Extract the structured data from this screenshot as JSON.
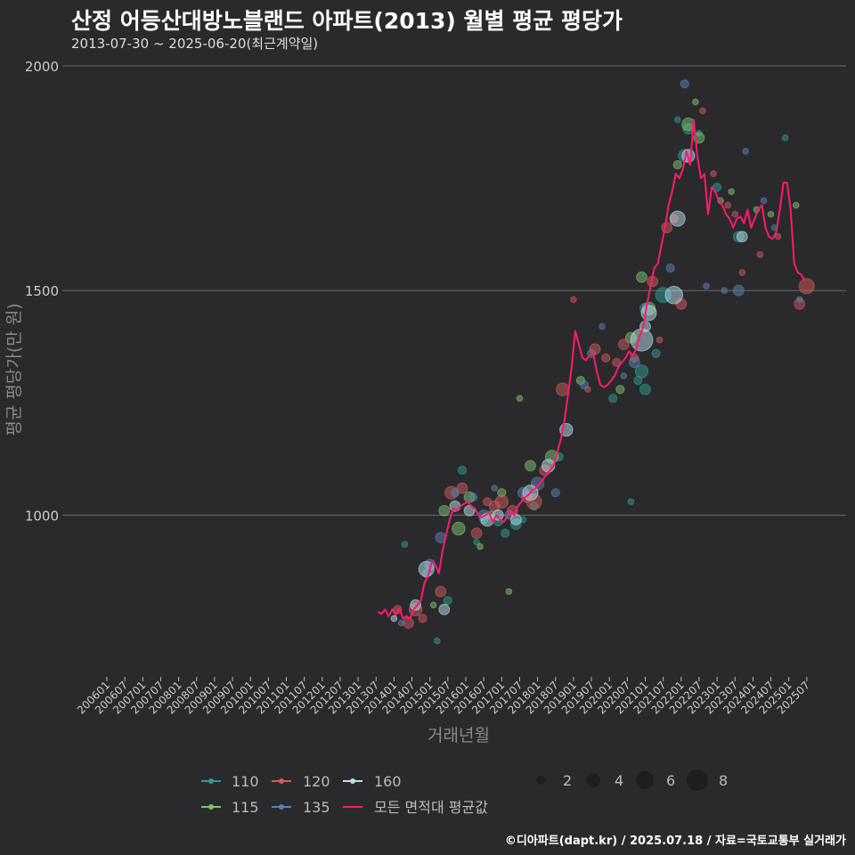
{
  "title": "산정 어등산대방노블랜드 아파트(2013) 월별 평균 평당가",
  "subtitle": "2013-07-30 ~ 2025-06-20(최근계약일)",
  "credit": "©디아파트(dapt.kr) / 2025.07.18 / 자료=국토교통부 실거래가",
  "colors": {
    "background": "#2a2a2c",
    "grid": "#6a6a6a",
    "avg_line": "#ff1a6e",
    "s110": "#2f9b93",
    "s115": "#7fc46a",
    "s120": "#d45a5a",
    "s135": "#5f7fb8",
    "s160": "#b8e0ea"
  },
  "chart_data": {
    "type": "scatter",
    "title": "산정 어등산대방노블랜드 아파트(2013) 월별 평균 평당가",
    "xlabel": "거래년월",
    "ylabel": "평균 평당가(만 원)",
    "ylim": [
      640,
      2000
    ],
    "yticks": [
      1000,
      1500,
      2000
    ],
    "xlim": [
      2006.0,
      2025.9
    ],
    "xticks": [
      "200601",
      "200607",
      "200701",
      "200707",
      "200801",
      "200807",
      "200901",
      "200907",
      "201001",
      "201007",
      "201101",
      "201107",
      "201201",
      "201207",
      "201301",
      "201307",
      "201401",
      "201407",
      "201501",
      "201507",
      "201601",
      "201607",
      "201701",
      "201707",
      "201801",
      "201807",
      "201901",
      "201907",
      "202001",
      "202007",
      "202101",
      "202107",
      "202201",
      "202207",
      "202301",
      "202307",
      "202401",
      "202407",
      "202501",
      "202507"
    ],
    "grid": "horizontal",
    "legend_position": "bottom",
    "legend": {
      "area_series": [
        "110",
        "115",
        "120",
        "135",
        "160"
      ],
      "line_series": "모든 면적대 평균값",
      "size_values": [
        "2",
        "4",
        "6",
        "8"
      ]
    },
    "avg_line": {
      "name": "모든 면적대 평균값",
      "points": [
        [
          2013.55,
          785
        ],
        [
          2013.65,
          780
        ],
        [
          2013.75,
          790
        ],
        [
          2013.85,
          775
        ],
        [
          2013.95,
          790
        ],
        [
          2014.05,
          778
        ],
        [
          2014.15,
          792
        ],
        [
          2014.25,
          770
        ],
        [
          2014.35,
          775
        ],
        [
          2014.45,
          770
        ],
        [
          2014.55,
          790
        ],
        [
          2014.65,
          800
        ],
        [
          2014.75,
          810
        ],
        [
          2014.85,
          850
        ],
        [
          2014.95,
          865
        ],
        [
          2015.05,
          895
        ],
        [
          2015.15,
          890
        ],
        [
          2015.25,
          870
        ],
        [
          2015.35,
          920
        ],
        [
          2015.45,
          955
        ],
        [
          2015.55,
          990
        ],
        [
          2015.65,
          1015
        ],
        [
          2015.75,
          1010
        ],
        [
          2015.85,
          1020
        ],
        [
          2015.95,
          1025
        ],
        [
          2016.05,
          1030
        ],
        [
          2016.15,
          1020
        ],
        [
          2016.25,
          1015
        ],
        [
          2016.35,
          1000
        ],
        [
          2016.45,
          995
        ],
        [
          2016.55,
          1000
        ],
        [
          2016.65,
          1005
        ],
        [
          2016.75,
          985
        ],
        [
          2016.85,
          1000
        ],
        [
          2016.95,
          990
        ],
        [
          2017.05,
          985
        ],
        [
          2017.15,
          995
        ],
        [
          2017.25,
          1010
        ],
        [
          2017.35,
          1000
        ],
        [
          2017.45,
          1020
        ],
        [
          2017.55,
          1030
        ],
        [
          2017.65,
          1040
        ],
        [
          2017.75,
          1045
        ],
        [
          2017.85,
          1055
        ],
        [
          2017.95,
          1060
        ],
        [
          2018.05,
          1070
        ],
        [
          2018.15,
          1080
        ],
        [
          2018.25,
          1090
        ],
        [
          2018.35,
          1100
        ],
        [
          2018.45,
          1110
        ],
        [
          2018.55,
          1140
        ],
        [
          2018.65,
          1170
        ],
        [
          2018.75,
          1210
        ],
        [
          2018.85,
          1270
        ],
        [
          2018.95,
          1330
        ],
        [
          2019.05,
          1410
        ],
        [
          2019.15,
          1380
        ],
        [
          2019.25,
          1350
        ],
        [
          2019.35,
          1345
        ],
        [
          2019.45,
          1355
        ],
        [
          2019.55,
          1360
        ],
        [
          2019.65,
          1320
        ],
        [
          2019.75,
          1290
        ],
        [
          2019.85,
          1285
        ],
        [
          2019.95,
          1290
        ],
        [
          2020.05,
          1300
        ],
        [
          2020.15,
          1310
        ],
        [
          2020.25,
          1330
        ],
        [
          2020.35,
          1340
        ],
        [
          2020.45,
          1350
        ],
        [
          2020.55,
          1365
        ],
        [
          2020.65,
          1355
        ],
        [
          2020.75,
          1370
        ],
        [
          2020.85,
          1400
        ],
        [
          2020.95,
          1420
        ],
        [
          2021.05,
          1470
        ],
        [
          2021.15,
          1510
        ],
        [
          2021.25,
          1550
        ],
        [
          2021.35,
          1560
        ],
        [
          2021.45,
          1600
        ],
        [
          2021.55,
          1640
        ],
        [
          2021.65,
          1690
        ],
        [
          2021.75,
          1720
        ],
        [
          2021.85,
          1760
        ],
        [
          2021.95,
          1750
        ],
        [
          2022.05,
          1770
        ],
        [
          2022.15,
          1810
        ],
        [
          2022.25,
          1780
        ],
        [
          2022.35,
          1880
        ],
        [
          2022.45,
          1800
        ],
        [
          2022.55,
          1750
        ],
        [
          2022.65,
          1760
        ],
        [
          2022.75,
          1670
        ],
        [
          2022.85,
          1730
        ],
        [
          2022.95,
          1720
        ],
        [
          2023.05,
          1700
        ],
        [
          2023.15,
          1690
        ],
        [
          2023.25,
          1670
        ],
        [
          2023.35,
          1660
        ],
        [
          2023.45,
          1640
        ],
        [
          2023.55,
          1660
        ],
        [
          2023.65,
          1665
        ],
        [
          2023.75,
          1650
        ],
        [
          2023.85,
          1680
        ],
        [
          2023.95,
          1640
        ],
        [
          2024.05,
          1660
        ],
        [
          2024.15,
          1680
        ],
        [
          2024.25,
          1690
        ],
        [
          2024.35,
          1640
        ],
        [
          2024.45,
          1620
        ],
        [
          2024.55,
          1615
        ],
        [
          2024.65,
          1630
        ],
        [
          2024.75,
          1680
        ],
        [
          2024.85,
          1740
        ],
        [
          2024.95,
          1740
        ],
        [
          2025.05,
          1680
        ],
        [
          2025.15,
          1560
        ],
        [
          2025.25,
          1540
        ],
        [
          2025.35,
          1535
        ],
        [
          2025.45,
          1520
        ]
      ]
    },
    "series": [
      {
        "name": "110",
        "points": [
          [
            2014.3,
            935,
            1
          ],
          [
            2015.2,
            720,
            1
          ],
          [
            2015.5,
            810,
            2
          ],
          [
            2015.9,
            1100,
            2
          ],
          [
            2016.3,
            940,
            1
          ],
          [
            2016.5,
            990,
            2
          ],
          [
            2016.9,
            985,
            2
          ],
          [
            2017.1,
            960,
            2
          ],
          [
            2017.4,
            980,
            3
          ],
          [
            2017.6,
            990,
            1
          ],
          [
            2017.9,
            1020,
            2
          ],
          [
            2018.6,
            1130,
            2
          ],
          [
            2019.5,
            1360,
            2
          ],
          [
            2020.1,
            1260,
            2
          ],
          [
            2020.6,
            1030,
            1
          ],
          [
            2020.8,
            1300,
            2
          ],
          [
            2020.9,
            1320,
            4
          ],
          [
            2021.0,
            1280,
            3
          ],
          [
            2021.3,
            1360,
            2
          ],
          [
            2021.5,
            1490,
            5
          ],
          [
            2021.9,
            1880,
            1
          ],
          [
            2022.1,
            1800,
            4
          ],
          [
            2022.2,
            1860,
            3
          ],
          [
            2022.5,
            1850,
            1
          ],
          [
            2023.0,
            1730,
            2
          ],
          [
            2023.6,
            1620,
            3
          ],
          [
            2024.6,
            1640,
            1
          ],
          [
            2024.9,
            1840,
            1
          ]
        ]
      },
      {
        "name": "115",
        "points": [
          [
            2015.1,
            800,
            1
          ],
          [
            2015.4,
            1010,
            3
          ],
          [
            2015.8,
            970,
            4
          ],
          [
            2016.1,
            1040,
            3
          ],
          [
            2016.4,
            930,
            1
          ],
          [
            2016.7,
            1000,
            2
          ],
          [
            2017.0,
            1050,
            2
          ],
          [
            2017.2,
            830,
            1
          ],
          [
            2017.5,
            1260,
            1
          ],
          [
            2017.8,
            1110,
            3
          ],
          [
            2018.4,
            1130,
            4
          ],
          [
            2019.2,
            1300,
            2
          ],
          [
            2020.3,
            1280,
            2
          ],
          [
            2020.6,
            1395,
            3
          ],
          [
            2020.9,
            1530,
            3
          ],
          [
            2021.1,
            1460,
            4
          ],
          [
            2021.9,
            1780,
            2
          ],
          [
            2022.2,
            1870,
            4
          ],
          [
            2022.4,
            1920,
            1
          ],
          [
            2022.5,
            1840,
            3
          ],
          [
            2023.1,
            1700,
            1
          ],
          [
            2023.4,
            1720,
            1
          ],
          [
            2024.1,
            1680,
            1
          ],
          [
            2024.5,
            1670,
            1
          ],
          [
            2025.2,
            1690,
            1
          ]
        ]
      },
      {
        "name": "120",
        "points": [
          [
            2014.1,
            790,
            2
          ],
          [
            2014.4,
            760,
            3
          ],
          [
            2014.6,
            790,
            4
          ],
          [
            2014.8,
            770,
            2
          ],
          [
            2015.3,
            830,
            3
          ],
          [
            2015.6,
            1050,
            4
          ],
          [
            2015.9,
            1060,
            3
          ],
          [
            2016.3,
            960,
            3
          ],
          [
            2016.6,
            1030,
            2
          ],
          [
            2016.8,
            1020,
            3
          ],
          [
            2017.0,
            1030,
            4
          ],
          [
            2017.3,
            1010,
            3
          ],
          [
            2017.7,
            1040,
            3
          ],
          [
            2017.9,
            1030,
            5
          ],
          [
            2018.2,
            1100,
            3
          ],
          [
            2018.7,
            1280,
            4
          ],
          [
            2019.0,
            1480,
            1
          ],
          [
            2019.4,
            1280,
            1
          ],
          [
            2019.6,
            1370,
            3
          ],
          [
            2019.9,
            1350,
            2
          ],
          [
            2020.2,
            1340,
            2
          ],
          [
            2020.4,
            1380,
            3
          ],
          [
            2020.7,
            1350,
            2
          ],
          [
            2021.2,
            1520,
            3
          ],
          [
            2021.4,
            1390,
            1
          ],
          [
            2021.6,
            1640,
            3
          ],
          [
            2021.8,
            1660,
            2
          ],
          [
            2022.0,
            1470,
            3
          ],
          [
            2022.6,
            1900,
            1
          ],
          [
            2022.9,
            1760,
            1
          ],
          [
            2023.3,
            1690,
            1
          ],
          [
            2023.5,
            1670,
            1
          ],
          [
            2023.7,
            1540,
            1
          ],
          [
            2024.2,
            1580,
            1
          ],
          [
            2024.7,
            1620,
            1
          ],
          [
            2025.3,
            1470,
            3
          ],
          [
            2025.5,
            1510,
            5
          ]
        ]
      },
      {
        "name": "135",
        "points": [
          [
            2014.2,
            760,
            1
          ],
          [
            2014.9,
            870,
            2
          ],
          [
            2015.0,
            890,
            3
          ],
          [
            2015.3,
            950,
            3
          ],
          [
            2015.7,
            1050,
            2
          ],
          [
            2016.2,
            1040,
            2
          ],
          [
            2016.5,
            1000,
            3
          ],
          [
            2016.8,
            1060,
            1
          ],
          [
            2017.2,
            1000,
            2
          ],
          [
            2017.6,
            1050,
            3
          ],
          [
            2018.0,
            1070,
            4
          ],
          [
            2018.5,
            1050,
            2
          ],
          [
            2019.3,
            1290,
            2
          ],
          [
            2019.8,
            1420,
            1
          ],
          [
            2020.4,
            1310,
            1
          ],
          [
            2020.7,
            1340,
            3
          ],
          [
            2021.0,
            1460,
            3
          ],
          [
            2021.7,
            1550,
            2
          ],
          [
            2022.1,
            1960,
            2
          ],
          [
            2022.7,
            1510,
            1
          ],
          [
            2023.2,
            1500,
            1
          ],
          [
            2023.6,
            1500,
            3
          ],
          [
            2023.8,
            1810,
            1
          ],
          [
            2024.3,
            1700,
            1
          ],
          [
            2025.3,
            1480,
            1
          ]
        ]
      },
      {
        "name": "160",
        "points": [
          [
            2014.0,
            770,
            1
          ],
          [
            2014.6,
            800,
            3
          ],
          [
            2014.9,
            880,
            5
          ],
          [
            2015.4,
            790,
            3
          ],
          [
            2015.7,
            1020,
            3
          ],
          [
            2016.1,
            1010,
            3
          ],
          [
            2016.6,
            990,
            4
          ],
          [
            2016.9,
            1000,
            3
          ],
          [
            2017.4,
            990,
            3
          ],
          [
            2017.8,
            1050,
            5
          ],
          [
            2018.3,
            1110,
            4
          ],
          [
            2018.8,
            1190,
            4
          ],
          [
            2020.9,
            1390,
            8
          ],
          [
            2021.0,
            1420,
            3
          ],
          [
            2021.1,
            1450,
            5
          ],
          [
            2021.8,
            1490,
            6
          ],
          [
            2021.9,
            1660,
            5
          ],
          [
            2022.2,
            1800,
            4
          ],
          [
            2023.7,
            1620,
            3
          ]
        ]
      }
    ]
  }
}
